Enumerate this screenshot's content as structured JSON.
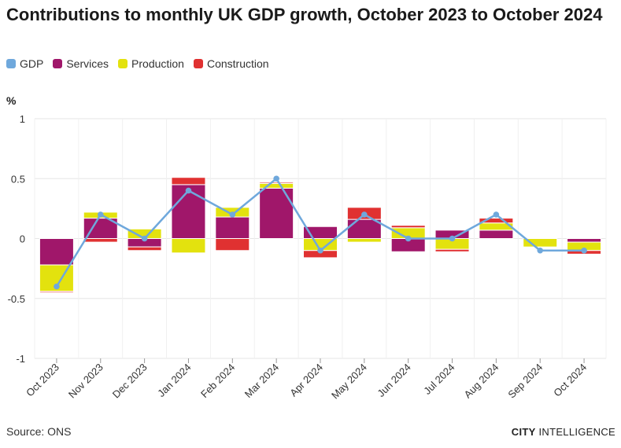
{
  "header": {
    "title": "Contributions to monthly UK GDP growth, October 2023 to October 2024"
  },
  "legend": [
    {
      "label": "GDP",
      "color": "#6fa8dc"
    },
    {
      "label": "Services",
      "color": "#a0176a"
    },
    {
      "label": "Production",
      "color": "#e3e20e"
    },
    {
      "label": "Construction",
      "color": "#e03131"
    }
  ],
  "axis": {
    "unit": "%"
  },
  "footer": {
    "source": "Source: ONS",
    "brand_bold": "CITY",
    "brand_rest": " INTELLIGENCE"
  },
  "chart_data": {
    "type": "bar",
    "stacked": true,
    "title": "Contributions to monthly UK GDP growth, October 2023 to October 2024",
    "xlabel": "",
    "ylabel": "%",
    "ylim": [
      -1,
      1
    ],
    "yticks": [
      1,
      0.5,
      0,
      -0.5,
      -1
    ],
    "ytick_labels": [
      "1",
      "0.5",
      "0",
      "-0.5",
      "-1"
    ],
    "categories": [
      "Oct 2023",
      "Nov 2023",
      "Dec 2023",
      "Jan 2024",
      "Feb 2024",
      "Mar 2024",
      "Apr 2024",
      "May 2024",
      "Jun 2024",
      "Jul 2024",
      "Aug 2024",
      "Sep 2024",
      "Oct 2024"
    ],
    "series": [
      {
        "name": "Services",
        "type": "bar",
        "color": "#a0176a",
        "values": [
          -0.22,
          0.17,
          -0.07,
          0.45,
          0.18,
          0.42,
          0.1,
          0.16,
          -0.11,
          0.07,
          0.07,
          0.0,
          -0.03
        ]
      },
      {
        "name": "Production",
        "type": "bar",
        "color": "#e3e20e",
        "values": [
          -0.22,
          0.05,
          0.08,
          -0.12,
          0.08,
          0.04,
          -0.1,
          -0.03,
          0.09,
          -0.09,
          0.06,
          -0.07,
          -0.07
        ]
      },
      {
        "name": "Construction",
        "type": "bar",
        "color": "#e03131",
        "values": [
          -0.01,
          -0.03,
          -0.03,
          0.06,
          -0.1,
          0.01,
          -0.06,
          0.1,
          0.02,
          -0.02,
          0.04,
          0.0,
          -0.03
        ]
      },
      {
        "name": "GDP",
        "type": "line",
        "color": "#6fa8dc",
        "values": [
          -0.4,
          0.2,
          0.0,
          0.4,
          0.2,
          0.5,
          -0.1,
          0.2,
          0.0,
          0.0,
          0.2,
          -0.1,
          -0.1
        ]
      }
    ]
  }
}
